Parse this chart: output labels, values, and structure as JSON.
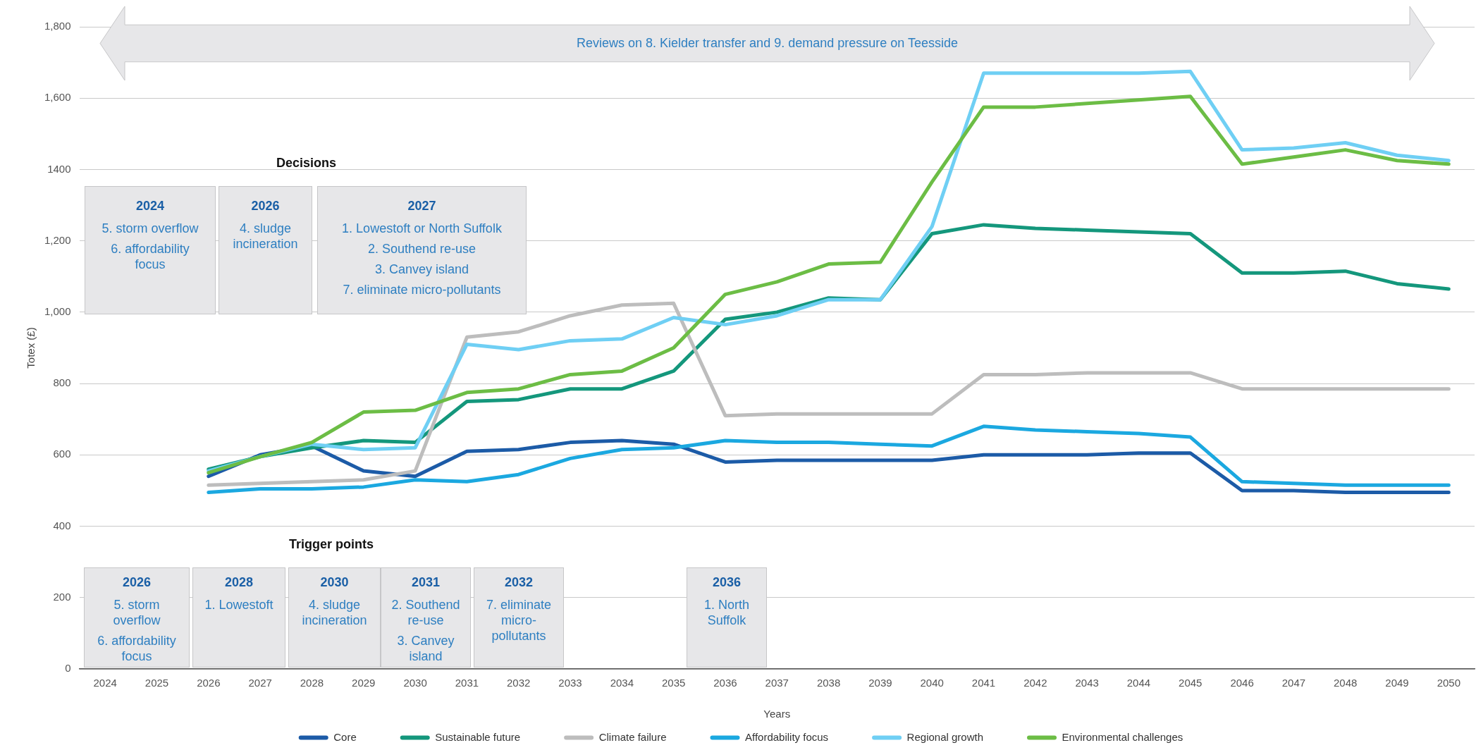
{
  "chart_data": {
    "type": "line",
    "categories": [
      "2024",
      "2025",
      "2026",
      "2027",
      "2028",
      "2029",
      "2030",
      "2031",
      "2032",
      "2033",
      "2034",
      "2035",
      "2036",
      "2037",
      "2038",
      "2039",
      "2040",
      "2041",
      "2042",
      "2043",
      "2044",
      "2045",
      "2046",
      "2047",
      "2048",
      "2049",
      "2050"
    ],
    "series": [
      {
        "name": "Core",
        "color": "#1c5ba7",
        "values": [
          null,
          null,
          540,
          600,
          625,
          555,
          540,
          610,
          615,
          635,
          640,
          630,
          580,
          585,
          585,
          585,
          585,
          600,
          600,
          600,
          605,
          605,
          500,
          500,
          495,
          495,
          495
        ]
      },
      {
        "name": "Sustainable future",
        "color": "#14977c",
        "values": [
          null,
          null,
          560,
          595,
          620,
          640,
          635,
          750,
          755,
          785,
          785,
          835,
          980,
          1000,
          1040,
          1035,
          1220,
          1245,
          1235,
          1230,
          1225,
          1220,
          1110,
          1110,
          1115,
          1080,
          1065
        ]
      },
      {
        "name": "Climate failure",
        "color": "#bdbdbd",
        "values": [
          null,
          null,
          515,
          520,
          525,
          530,
          555,
          930,
          945,
          990,
          1020,
          1025,
          710,
          715,
          715,
          715,
          715,
          825,
          825,
          830,
          830,
          830,
          785,
          785,
          785,
          785,
          785
        ]
      },
      {
        "name": "Affordability focus",
        "color": "#1ba8e0",
        "values": [
          null,
          null,
          495,
          505,
          505,
          510,
          530,
          525,
          545,
          590,
          615,
          620,
          640,
          635,
          635,
          630,
          625,
          680,
          670,
          665,
          660,
          650,
          525,
          520,
          515,
          515,
          515
        ]
      },
      {
        "name": "Regional growth",
        "color": "#6fcff4",
        "values": [
          null,
          null,
          555,
          595,
          630,
          615,
          620,
          910,
          895,
          920,
          925,
          985,
          965,
          990,
          1035,
          1035,
          1240,
          1670,
          1670,
          1670,
          1670,
          1675,
          1455,
          1460,
          1475,
          1440,
          1425
        ]
      },
      {
        "name": "Environmental challenges",
        "color": "#6cbd45",
        "values": [
          null,
          null,
          550,
          595,
          635,
          720,
          725,
          775,
          785,
          825,
          835,
          900,
          1050,
          1085,
          1135,
          1140,
          1365,
          1575,
          1575,
          1585,
          1595,
          1605,
          1415,
          1435,
          1455,
          1425,
          1415
        ]
      }
    ],
    "xlabel": "Years",
    "ylabel": "Totex (£)",
    "ylim": [
      0,
      1800
    ],
    "yticks": [
      0,
      200,
      400,
      600,
      800,
      {
        "value": 1000,
        "label": "1,000"
      },
      {
        "value": 1200,
        "label": "1,200"
      },
      1400,
      {
        "value": 1600,
        "label": "1,600"
      },
      {
        "value": 1800,
        "label": "1,800"
      }
    ],
    "grid": "y",
    "legend": "bottom",
    "marker": "none",
    "annotations": [
      "Reviews on 8. Kielder transfer and 9. demand pressure on Teesside",
      "Decisions",
      "2024\n5. storm overflow\n6. affordability focus",
      "2026\n4. sludge incineration",
      "2027\n1. Lowestoft or North Suffolk\n2. Southend re-use\n3. Canvey island\n7. eliminate micro-pollutants",
      "Trigger points",
      "2026\n5. storm overflow\n6. affordability focus",
      "2028\n1. Lowestoft",
      "2030\n4. sludge incineration",
      "2031\n2. Southend re-use\n3. Canvey island",
      "2032\n7. eliminate micro-pollutants",
      "2036\n1. North Suffolk"
    ]
  }
}
